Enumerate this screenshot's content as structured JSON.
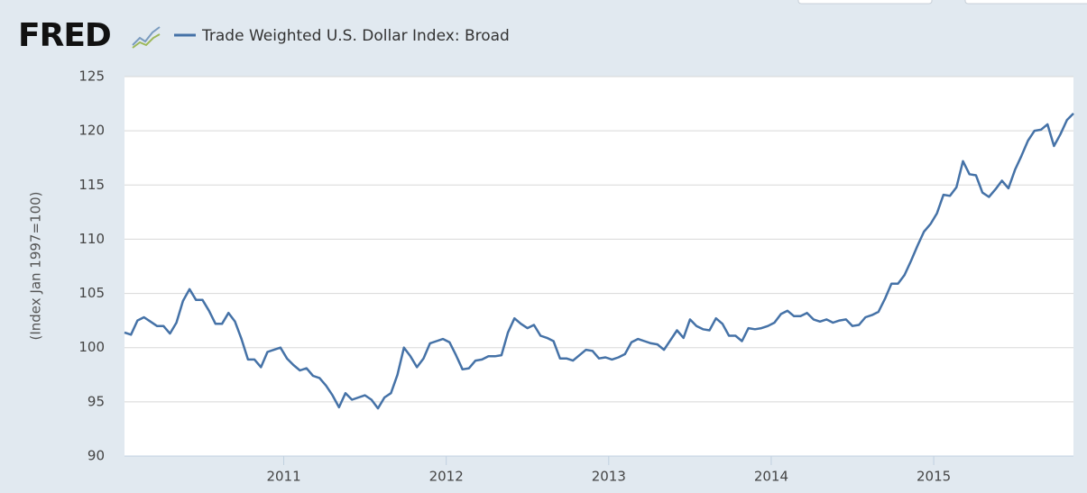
{
  "brand": "FRED",
  "chart_data": {
    "type": "line",
    "y_label": "(Index Jan 1997=100)",
    "x": [
      2010.02,
      2010.06,
      2010.1,
      2010.14,
      2010.18,
      2010.22,
      2010.26,
      2010.3,
      2010.34,
      2010.38,
      2010.42,
      2010.46,
      2010.5,
      2010.54,
      2010.58,
      2010.62,
      2010.66,
      2010.7,
      2010.74,
      2010.78,
      2010.82,
      2010.86,
      2010.9,
      2010.94,
      2010.98,
      2011.02,
      2011.06,
      2011.1,
      2011.14,
      2011.18,
      2011.22,
      2011.26,
      2011.3,
      2011.34,
      2011.38,
      2011.42,
      2011.46,
      2011.5,
      2011.54,
      2011.58,
      2011.62,
      2011.66,
      2011.7,
      2011.74,
      2011.78,
      2011.82,
      2011.86,
      2011.9,
      2011.94,
      2011.98,
      2012.02,
      2012.06,
      2012.1,
      2012.14,
      2012.18,
      2012.22,
      2012.26,
      2012.3,
      2012.34,
      2012.38,
      2012.42,
      2012.46,
      2012.5,
      2012.54,
      2012.58,
      2012.62,
      2012.66,
      2012.7,
      2012.74,
      2012.78,
      2012.82,
      2012.86,
      2012.9,
      2012.94,
      2012.98,
      2013.02,
      2013.06,
      2013.1,
      2013.14,
      2013.18,
      2013.22,
      2013.26,
      2013.3,
      2013.34,
      2013.38,
      2013.42,
      2013.46,
      2013.5,
      2013.54,
      2013.58,
      2013.62,
      2013.66,
      2013.7,
      2013.74,
      2013.78,
      2013.82,
      2013.86,
      2013.9,
      2013.94,
      2013.98,
      2014.02,
      2014.06,
      2014.1,
      2014.14,
      2014.18,
      2014.22,
      2014.26,
      2014.3,
      2014.34,
      2014.38,
      2014.42,
      2014.46,
      2014.5,
      2014.54,
      2014.58,
      2014.62,
      2014.66,
      2014.7,
      2014.74,
      2014.78,
      2014.82,
      2014.86,
      2014.9,
      2014.94,
      2014.98,
      2015.02,
      2015.06,
      2015.1,
      2015.14,
      2015.18,
      2015.22,
      2015.26,
      2015.3,
      2015.34,
      2015.38,
      2015.42,
      2015.46,
      2015.5,
      2015.54,
      2015.58,
      2015.62,
      2015.66,
      2015.7,
      2015.74,
      2015.78,
      2015.82,
      2015.86
    ],
    "series": [
      {
        "name": "Trade Weighted U.S. Dollar Index: Broad",
        "color": "#4572a7",
        "values": [
          101.4,
          101.2,
          102.5,
          102.8,
          102.4,
          102.0,
          102.0,
          101.3,
          102.3,
          104.3,
          105.4,
          104.4,
          104.4,
          103.4,
          102.2,
          102.2,
          103.2,
          102.4,
          100.8,
          98.9,
          98.9,
          98.2,
          99.6,
          99.8,
          100.0,
          99.0,
          98.4,
          97.9,
          98.1,
          97.4,
          97.2,
          96.5,
          95.6,
          94.5,
          95.8,
          95.2,
          95.4,
          95.6,
          95.2,
          94.4,
          95.4,
          95.8,
          97.5,
          100.0,
          99.2,
          98.2,
          99.0,
          100.4,
          100.6,
          100.8,
          100.5,
          99.3,
          98.0,
          98.1,
          98.8,
          98.9,
          99.2,
          99.2,
          99.3,
          101.4,
          102.7,
          102.2,
          101.8,
          102.1,
          101.1,
          100.9,
          100.6,
          99.0,
          99.0,
          98.8,
          99.3,
          99.8,
          99.7,
          99.0,
          99.1,
          98.9,
          99.1,
          99.4,
          100.5,
          100.8,
          100.6,
          100.4,
          100.3,
          99.8,
          100.7,
          101.6,
          100.9,
          102.6,
          102.0,
          101.7,
          101.6,
          102.7,
          102.2,
          101.1,
          101.1,
          100.6,
          101.8,
          101.7,
          101.8,
          102.0,
          102.3,
          103.1,
          103.4,
          102.9,
          102.9,
          103.2,
          102.6,
          102.4,
          102.6,
          102.3,
          102.5,
          102.6,
          102.0,
          102.1,
          102.8,
          103.0,
          103.3,
          104.5,
          105.9,
          105.9,
          106.7,
          108.0,
          109.4,
          110.7,
          111.4,
          112.4,
          114.1,
          114.0,
          114.8,
          117.2,
          116.0,
          115.9,
          114.3,
          113.9,
          114.6,
          115.4,
          114.7,
          116.4,
          117.7,
          119.1,
          120.0,
          120.1,
          120.6,
          118.6,
          119.7,
          121.0,
          121.6
        ]
      }
    ],
    "xlim": [
      2010.02,
      2015.86
    ],
    "xticks": [
      2011,
      2012,
      2013,
      2014,
      2015
    ],
    "ylim": [
      90,
      125
    ],
    "yticks": [
      90,
      95,
      100,
      105,
      110,
      115,
      120,
      125
    ],
    "grid": true
  }
}
